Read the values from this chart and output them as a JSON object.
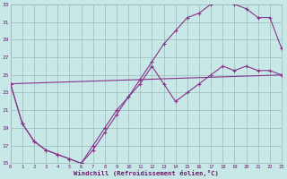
{
  "xlabel": "Windchill (Refroidissement éolien,°C)",
  "line1_x": [
    0,
    1,
    2,
    3,
    4,
    5,
    6,
    7,
    8,
    9,
    10,
    11,
    12,
    13,
    14,
    15,
    16,
    17,
    18,
    19,
    20,
    21,
    22,
    23
  ],
  "line1_y": [
    24.0,
    19.5,
    17.5,
    16.5,
    16.0,
    15.5,
    15.0,
    16.5,
    18.5,
    20.5,
    22.5,
    24.5,
    26.5,
    28.5,
    30.0,
    31.5,
    32.0,
    33.0,
    33.5,
    33.0,
    32.5,
    31.5,
    31.5,
    28.0
  ],
  "line2_x": [
    0,
    1,
    2,
    3,
    4,
    5,
    6,
    7,
    8,
    9,
    10,
    11,
    12,
    13,
    14,
    15,
    16,
    17,
    18,
    19,
    20,
    21,
    22,
    23
  ],
  "line2_y": [
    24.0,
    19.5,
    17.5,
    16.5,
    16.0,
    15.5,
    15.0,
    17.0,
    19.0,
    21.0,
    22.5,
    24.0,
    26.0,
    24.0,
    22.0,
    23.0,
    24.0,
    25.0,
    26.0,
    25.5,
    26.0,
    25.5,
    25.5,
    25.0
  ],
  "line3_x": [
    0,
    23
  ],
  "line3_y": [
    24.0,
    25.0
  ],
  "line_color": "#883388",
  "marker": "+",
  "bg_color": "#c8e8e8",
  "grid_color": "#9bbaba",
  "tick_color": "#6a1a6a",
  "xlim": [
    0,
    23
  ],
  "ylim": [
    15,
    33
  ],
  "yticks": [
    15,
    17,
    19,
    21,
    23,
    25,
    27,
    29,
    31,
    33
  ],
  "xticks": [
    0,
    1,
    2,
    3,
    4,
    5,
    6,
    7,
    8,
    9,
    10,
    11,
    12,
    13,
    14,
    15,
    16,
    17,
    18,
    19,
    20,
    21,
    22,
    23
  ]
}
